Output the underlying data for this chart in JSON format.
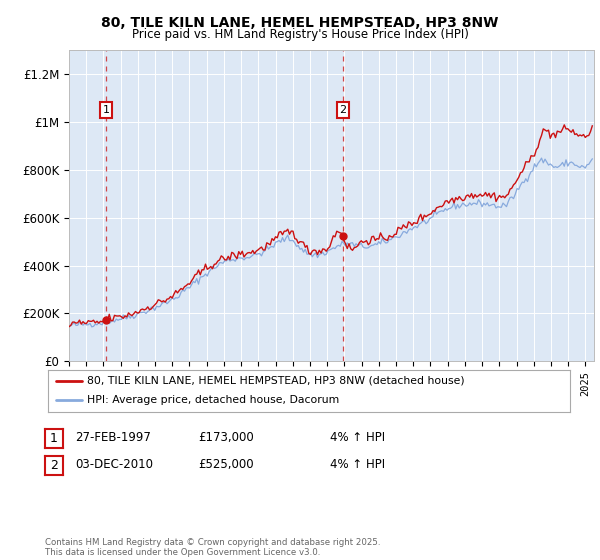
{
  "title": "80, TILE KILN LANE, HEMEL HEMPSTEAD, HP3 8NW",
  "subtitle": "Price paid vs. HM Land Registry's House Price Index (HPI)",
  "bg_color": "#dde8f5",
  "line1_color": "#cc1111",
  "line2_color": "#88aadd",
  "vline_color": "#cc1111",
  "ylim": [
    0,
    1300000
  ],
  "xlim_start": 1995.0,
  "xlim_end": 2025.5,
  "yticks": [
    0,
    200000,
    400000,
    600000,
    800000,
    1000000,
    1200000
  ],
  "ytick_labels": [
    "£0",
    "£200K",
    "£400K",
    "£600K",
    "£800K",
    "£1M",
    "£1.2M"
  ],
  "purchase1_date": 1997.16,
  "purchase1_price": 173000,
  "purchase2_date": 2010.92,
  "purchase2_price": 525000,
  "legend1_label": "80, TILE KILN LANE, HEMEL HEMPSTEAD, HP3 8NW (detached house)",
  "legend2_label": "HPI: Average price, detached house, Dacorum",
  "table_rows": [
    [
      "1",
      "27-FEB-1997",
      "£173,000",
      "4% ↑ HPI"
    ],
    [
      "2",
      "03-DEC-2010",
      "£525,000",
      "4% ↑ HPI"
    ]
  ],
  "footer": "Contains HM Land Registry data © Crown copyright and database right 2025.\nThis data is licensed under the Open Government Licence v3.0."
}
